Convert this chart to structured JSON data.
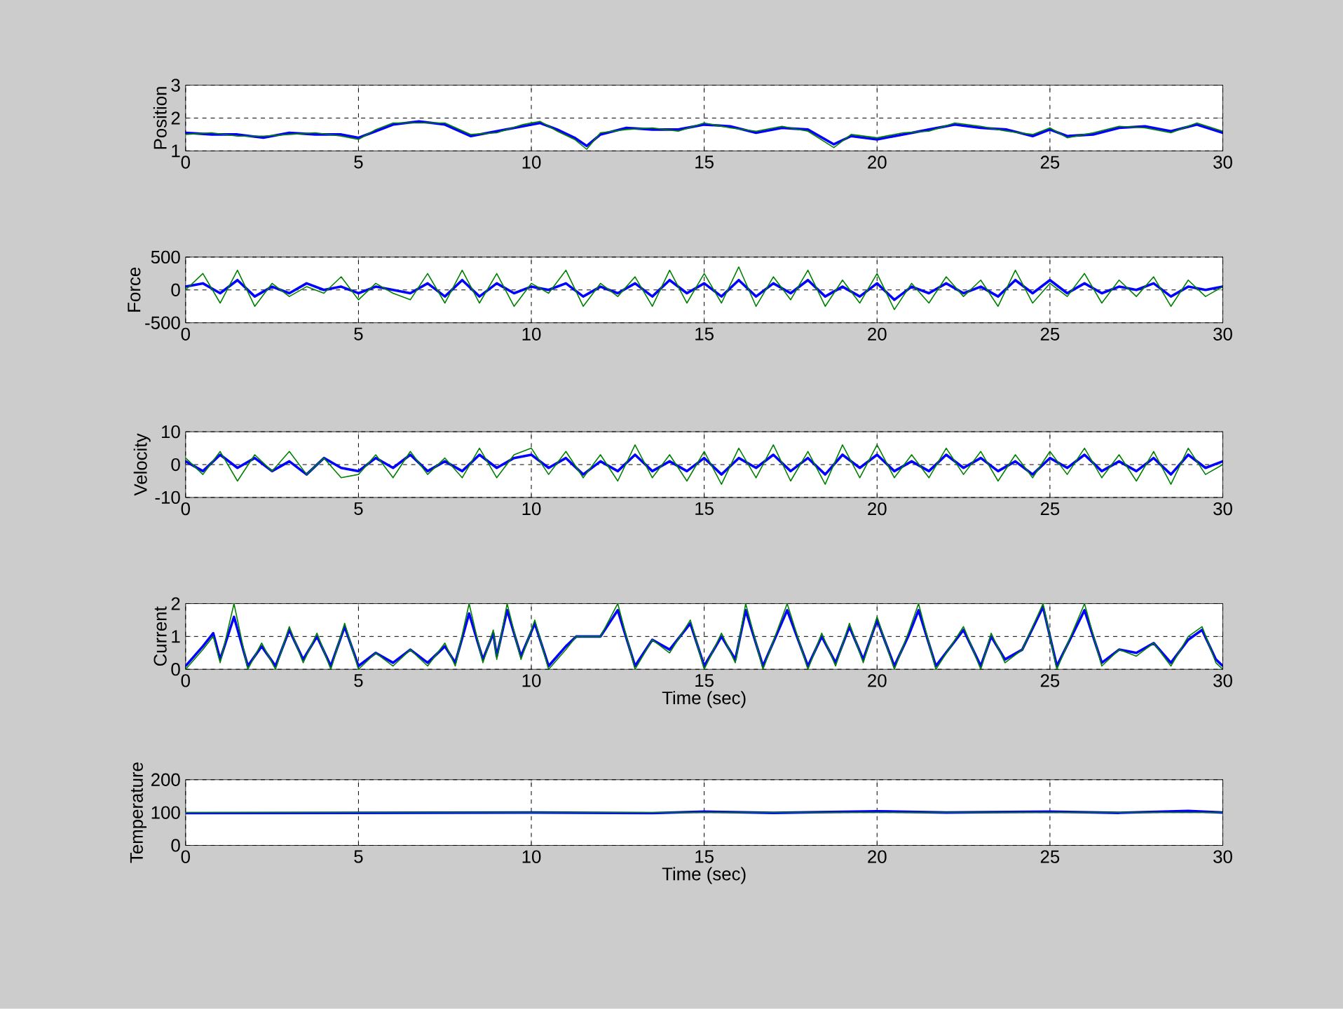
{
  "chart_data": [
    {
      "type": "line",
      "ylabel": "Position",
      "xlim": [
        0,
        30
      ],
      "xticks": [
        0,
        5,
        10,
        15,
        20,
        25,
        30
      ],
      "ylim": [
        1,
        3
      ],
      "yticks": [
        1,
        2,
        3
      ],
      "grid": true,
      "x": [
        0,
        0.75,
        1.5,
        2.25,
        3,
        3.75,
        4.5,
        5,
        5.5,
        6,
        6.75,
        7.5,
        8.25,
        9,
        9.75,
        10.25,
        10.75,
        11.25,
        11.6,
        12,
        12.75,
        13.5,
        14.25,
        15,
        15.75,
        16.5,
        17.25,
        18,
        18.75,
        19.25,
        20,
        20.75,
        21.5,
        22.25,
        23,
        23.75,
        24.5,
        25,
        25.5,
        26.25,
        27,
        27.75,
        28.5,
        29.25,
        30
      ],
      "series": [
        {
          "color": "#0000ff",
          "values": [
            1.55,
            1.5,
            1.5,
            1.4,
            1.55,
            1.5,
            1.5,
            1.4,
            1.6,
            1.8,
            1.9,
            1.8,
            1.45,
            1.6,
            1.75,
            1.85,
            1.65,
            1.4,
            1.15,
            1.5,
            1.7,
            1.65,
            1.65,
            1.8,
            1.75,
            1.55,
            1.7,
            1.65,
            1.2,
            1.45,
            1.35,
            1.5,
            1.65,
            1.8,
            1.7,
            1.65,
            1.45,
            1.65,
            1.45,
            1.5,
            1.7,
            1.75,
            1.6,
            1.8,
            1.55
          ]
        },
        {
          "color": "#008000",
          "values": [
            1.5,
            1.55,
            1.45,
            1.45,
            1.5,
            1.55,
            1.45,
            1.35,
            1.65,
            1.85,
            1.85,
            1.85,
            1.5,
            1.55,
            1.8,
            1.9,
            1.6,
            1.35,
            1.05,
            1.55,
            1.65,
            1.7,
            1.6,
            1.85,
            1.7,
            1.6,
            1.75,
            1.6,
            1.1,
            1.5,
            1.4,
            1.55,
            1.6,
            1.85,
            1.75,
            1.6,
            1.5,
            1.7,
            1.4,
            1.55,
            1.75,
            1.7,
            1.55,
            1.85,
            1.6
          ]
        }
      ]
    },
    {
      "type": "line",
      "ylabel": "Force",
      "xlim": [
        0,
        30
      ],
      "xticks": [
        0,
        5,
        10,
        15,
        20,
        25,
        30
      ],
      "ylim": [
        -500,
        500
      ],
      "yticks": [
        -500,
        0,
        500
      ],
      "grid": true,
      "x": [
        0,
        0.5,
        1,
        1.5,
        2,
        2.5,
        3,
        3.5,
        4,
        4.5,
        5,
        5.5,
        6,
        6.5,
        7,
        7.5,
        8,
        8.5,
        9,
        9.5,
        10,
        10.5,
        11,
        11.5,
        12,
        12.5,
        13,
        13.5,
        14,
        14.5,
        15,
        15.5,
        16,
        16.5,
        17,
        17.5,
        18,
        18.5,
        19,
        19.5,
        20,
        20.5,
        21,
        21.5,
        22,
        22.5,
        23,
        23.5,
        24,
        24.5,
        25,
        25.5,
        26,
        26.5,
        27,
        27.5,
        28,
        28.5,
        29,
        29.5,
        30
      ],
      "series": [
        {
          "color": "#0000ff",
          "values": [
            50,
            100,
            -50,
            150,
            -100,
            50,
            -50,
            100,
            0,
            50,
            -50,
            50,
            0,
            -50,
            100,
            -100,
            150,
            -100,
            100,
            -50,
            50,
            0,
            100,
            -100,
            50,
            -50,
            100,
            -100,
            150,
            -50,
            100,
            -100,
            150,
            -100,
            100,
            -50,
            150,
            -100,
            50,
            -100,
            100,
            -150,
            50,
            -50,
            100,
            -50,
            50,
            -100,
            150,
            -50,
            150,
            -50,
            100,
            -50,
            50,
            0,
            100,
            -100,
            50,
            0,
            50
          ]
        },
        {
          "color": "#008000",
          "values": [
            0,
            250,
            -200,
            300,
            -250,
            100,
            -100,
            50,
            -50,
            200,
            -150,
            100,
            -50,
            -150,
            250,
            -200,
            300,
            -200,
            250,
            -250,
            100,
            -50,
            300,
            -250,
            100,
            -100,
            200,
            -250,
            300,
            -200,
            250,
            -200,
            350,
            -250,
            200,
            -150,
            300,
            -250,
            150,
            -200,
            250,
            -300,
            100,
            -200,
            200,
            -100,
            150,
            -250,
            300,
            -200,
            100,
            -100,
            250,
            -200,
            150,
            -100,
            200,
            -250,
            150,
            -100,
            50
          ]
        }
      ]
    },
    {
      "type": "line",
      "ylabel": "Velocity",
      "xlim": [
        0,
        30
      ],
      "xticks": [
        0,
        5,
        10,
        15,
        20,
        25,
        30
      ],
      "ylim": [
        -10,
        10
      ],
      "yticks": [
        -10,
        0,
        10
      ],
      "grid": true,
      "x": [
        0,
        0.5,
        1,
        1.5,
        2,
        2.5,
        3,
        3.5,
        4,
        4.5,
        5,
        5.5,
        6,
        6.5,
        7,
        7.5,
        8,
        8.5,
        9,
        9.5,
        10,
        10.5,
        11,
        11.5,
        12,
        12.5,
        13,
        13.5,
        14,
        14.5,
        15,
        15.5,
        16,
        16.5,
        17,
        17.5,
        18,
        18.5,
        19,
        19.5,
        20,
        20.5,
        21,
        21.5,
        22,
        22.5,
        23,
        23.5,
        24,
        24.5,
        25,
        25.5,
        26,
        26.5,
        27,
        27.5,
        28,
        28.5,
        29,
        29.5,
        30
      ],
      "series": [
        {
          "color": "#0000ff",
          "values": [
            1,
            -2,
            3,
            -1,
            2,
            -2,
            1,
            -3,
            2,
            -1,
            -2,
            2,
            -1,
            3,
            -2,
            1,
            -2,
            3,
            -1,
            2,
            3,
            -1,
            2,
            -3,
            1,
            -2,
            3,
            -2,
            1,
            -2,
            2,
            -3,
            2,
            -1,
            3,
            -2,
            2,
            -3,
            3,
            -1,
            3,
            -2,
            1,
            -2,
            3,
            -1,
            2,
            -2,
            1,
            -3,
            2,
            -1,
            3,
            -2,
            1,
            -2,
            2,
            -3,
            3,
            -1,
            1
          ]
        },
        {
          "color": "#008000",
          "values": [
            2,
            -3,
            4,
            -5,
            3,
            -2,
            4,
            -3,
            2,
            -4,
            -3,
            3,
            -4,
            4,
            -3,
            2,
            -4,
            5,
            -4,
            3,
            5,
            -3,
            4,
            -4,
            3,
            -5,
            6,
            -4,
            3,
            -5,
            4,
            -6,
            5,
            -4,
            6,
            -5,
            4,
            -6,
            6,
            -4,
            6,
            -4,
            3,
            -4,
            5,
            -3,
            4,
            -5,
            3,
            -4,
            4,
            -3,
            5,
            -4,
            3,
            -5,
            4,
            -6,
            5,
            -3,
            0
          ]
        }
      ]
    },
    {
      "type": "line",
      "ylabel": "Current",
      "xlabel": "Time (sec)",
      "xlim": [
        0,
        30
      ],
      "xticks": [
        0,
        5,
        10,
        15,
        20,
        25,
        30
      ],
      "ylim": [
        0,
        2
      ],
      "yticks": [
        0,
        1,
        2
      ],
      "grid": true,
      "x": [
        0,
        0.5,
        0.8,
        1.0,
        1.4,
        1.8,
        2.2,
        2.6,
        3.0,
        3.4,
        3.8,
        4.2,
        4.6,
        5.0,
        5.5,
        6.0,
        6.5,
        7.0,
        7.5,
        7.8,
        8.2,
        8.6,
        8.9,
        9.0,
        9.3,
        9.7,
        10.1,
        10.5,
        11.0,
        11.3,
        12.0,
        12.5,
        13.0,
        13.5,
        14.0,
        14.6,
        15.0,
        15.5,
        15.9,
        16.2,
        16.7,
        17.4,
        18.0,
        18.4,
        18.8,
        19.2,
        19.6,
        20.0,
        20.5,
        20.9,
        21.2,
        21.7,
        22.5,
        23.0,
        23.3,
        23.7,
        24.2,
        24.8,
        25.2,
        26.0,
        26.5,
        27.0,
        27.5,
        28.0,
        28.5,
        29.0,
        29.4,
        29.8,
        30
      ],
      "series": [
        {
          "color": "#0000ff",
          "values": [
            0.1,
            0.7,
            1.1,
            0.3,
            1.6,
            0.1,
            0.7,
            0.1,
            1.2,
            0.3,
            1.0,
            0.1,
            1.3,
            0.1,
            0.5,
            0.2,
            0.6,
            0.2,
            0.7,
            0.2,
            1.7,
            0.3,
            1.1,
            0.4,
            1.8,
            0.4,
            1.4,
            0.1,
            0.7,
            1.0,
            1.0,
            1.8,
            0.1,
            0.9,
            0.6,
            1.4,
            0.1,
            1.0,
            0.3,
            1.8,
            0.1,
            1.8,
            0.1,
            1.0,
            0.2,
            1.3,
            0.3,
            1.5,
            0.1,
            1.0,
            1.8,
            0.1,
            1.2,
            0.1,
            1.0,
            0.3,
            0.6,
            1.9,
            0.1,
            1.8,
            0.2,
            0.6,
            0.5,
            0.8,
            0.2,
            0.9,
            1.2,
            0.3,
            0.1
          ]
        },
        {
          "color": "#008000",
          "values": [
            0,
            0.6,
            1.0,
            0.2,
            2.0,
            0,
            0.8,
            0,
            1.3,
            0.2,
            1.1,
            0,
            1.4,
            0,
            0.5,
            0.1,
            0.6,
            0.1,
            0.8,
            0.1,
            2.0,
            0.2,
            1.2,
            0.3,
            2.0,
            0.3,
            1.5,
            0,
            0.6,
            1.0,
            1.0,
            2.0,
            0,
            0.9,
            0.5,
            1.5,
            0,
            1.1,
            0.2,
            2.0,
            0,
            2.0,
            0,
            1.1,
            0.1,
            1.4,
            0.2,
            1.6,
            0,
            1.1,
            2.0,
            0,
            1.3,
            0,
            1.1,
            0.2,
            0.6,
            2.0,
            0,
            2.0,
            0.1,
            0.6,
            0.4,
            0.8,
            0.1,
            1.0,
            1.3,
            0.2,
            0
          ]
        }
      ]
    },
    {
      "type": "line",
      "ylabel": "Temperature",
      "xlabel": "Time (sec)",
      "xlim": [
        0,
        30
      ],
      "xticks": [
        0,
        5,
        10,
        15,
        20,
        25,
        30
      ],
      "ylim": [
        0,
        200
      ],
      "yticks": [
        0,
        100,
        200
      ],
      "grid": true,
      "x": [
        0,
        5,
        10,
        13.5,
        15,
        17,
        20,
        22,
        25,
        27,
        29,
        30
      ],
      "series": [
        {
          "color": "#0000ff",
          "values": [
            98,
            99,
            100,
            98,
            103,
            99,
            104,
            100,
            103,
            99,
            105,
            100
          ]
        },
        {
          "color": "#008000",
          "values": [
            100,
            100,
            100,
            100,
            100,
            100,
            100,
            100,
            100,
            100,
            100,
            100
          ]
        }
      ]
    }
  ]
}
